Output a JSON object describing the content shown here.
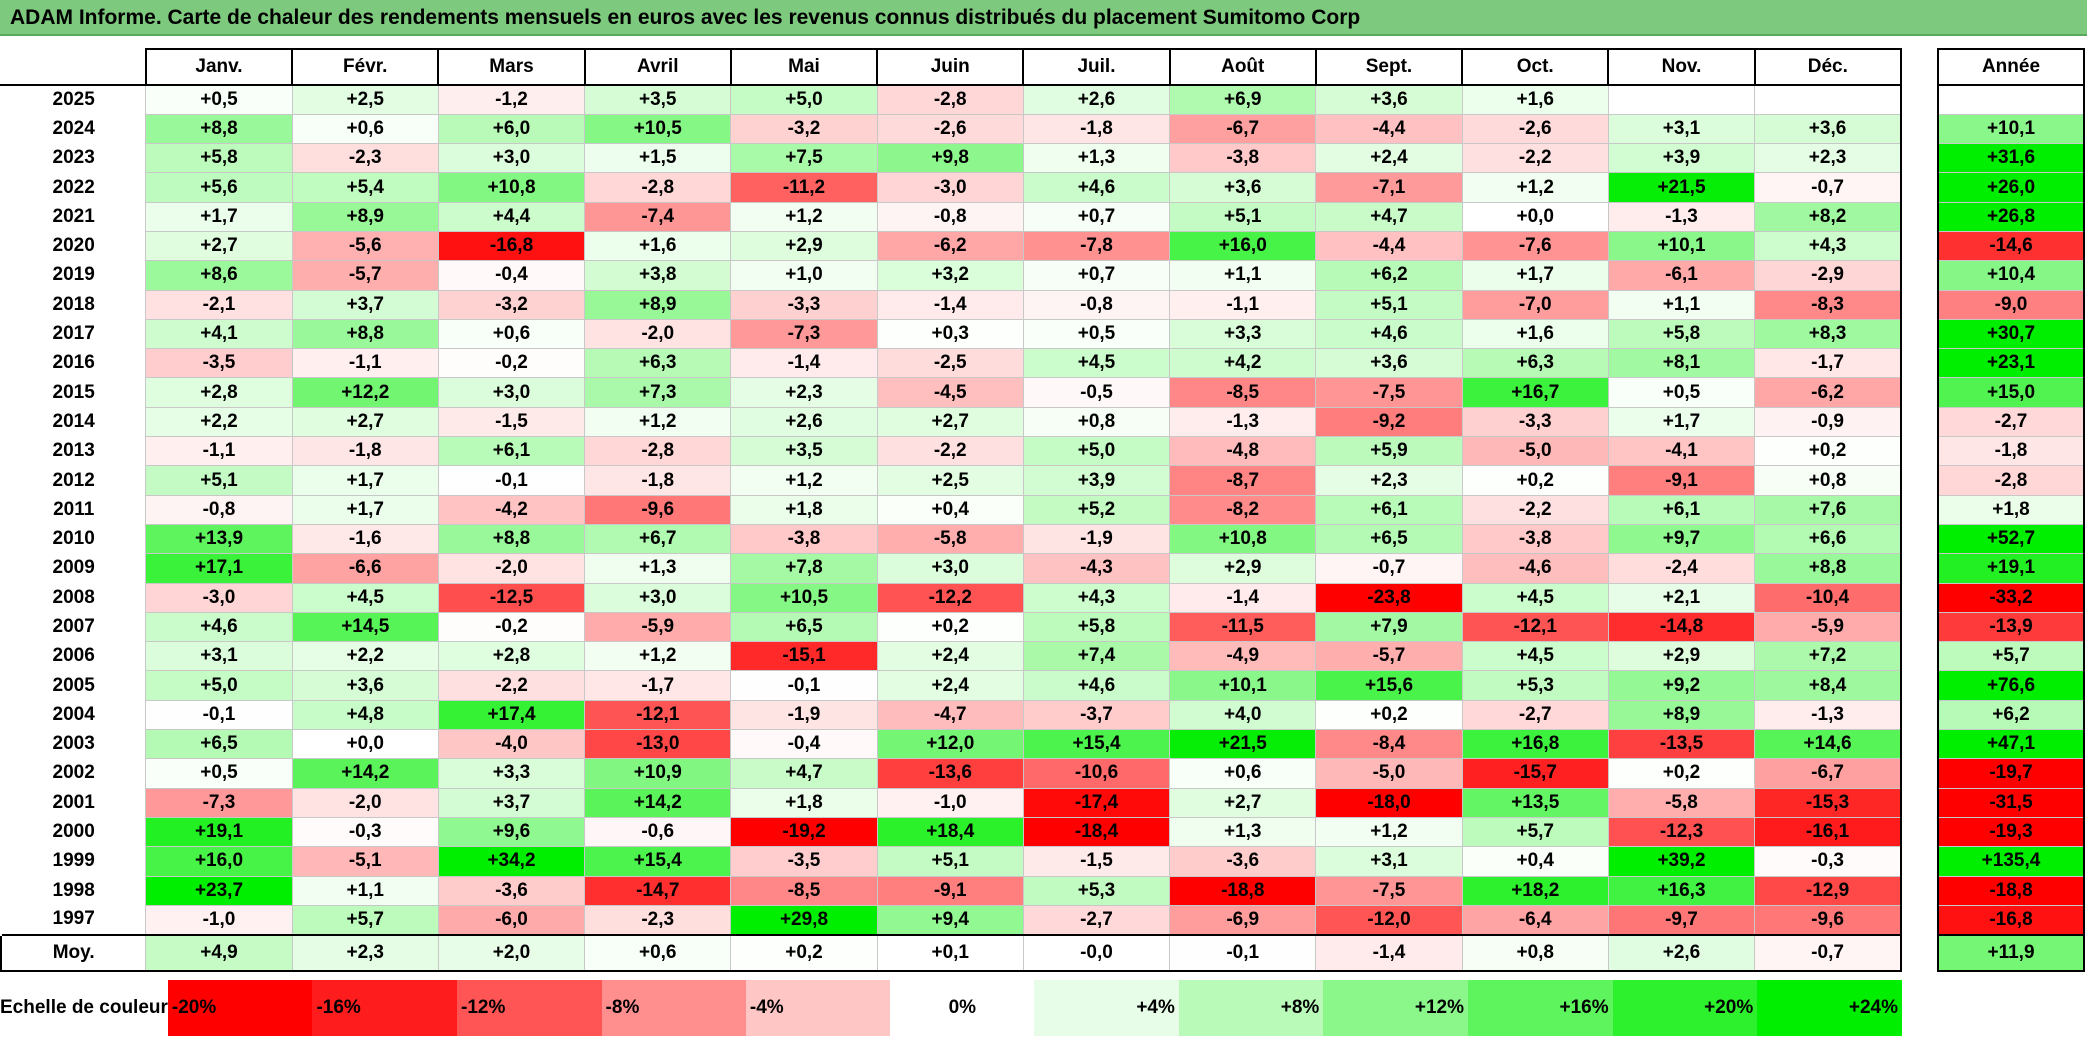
{
  "title": "ADAM Informe. Carte de chaleur des rendements mensuels en euros avec les revenus connus distribués du placement Sumitomo Corp",
  "chart_data": {
    "type": "heatmap",
    "title": "ADAM Informe. Carte de chaleur des rendements mensuels en euros avec les revenus connus distribués du placement Sumitomo Corp",
    "months": [
      "Janv.",
      "Févr.",
      "Mars",
      "Avril",
      "Mai",
      "Juin",
      "Juil.",
      "Août",
      "Sept.",
      "Oct.",
      "Nov.",
      "Déc."
    ],
    "year_header": "Année",
    "rows": [
      {
        "year": "2025",
        "values": [
          "+0,5",
          "+2,5",
          "-1,2",
          "+3,5",
          "+5,0",
          "-2,8",
          "+2,6",
          "+6,9",
          "+3,6",
          "+1,6",
          "",
          ""
        ],
        "annual": ""
      },
      {
        "year": "2024",
        "values": [
          "+8,8",
          "+0,6",
          "+6,0",
          "+10,5",
          "-3,2",
          "-2,6",
          "-1,8",
          "-6,7",
          "-4,4",
          "-2,6",
          "+3,1",
          "+3,6"
        ],
        "annual": "+10,1"
      },
      {
        "year": "2023",
        "values": [
          "+5,8",
          "-2,3",
          "+3,0",
          "+1,5",
          "+7,5",
          "+9,8",
          "+1,3",
          "-3,8",
          "+2,4",
          "-2,2",
          "+3,9",
          "+2,3"
        ],
        "annual": "+31,6"
      },
      {
        "year": "2022",
        "values": [
          "+5,6",
          "+5,4",
          "+10,8",
          "-2,8",
          "-11,2",
          "-3,0",
          "+4,6",
          "+3,6",
          "-7,1",
          "+1,2",
          "+21,5",
          "-0,7"
        ],
        "annual": "+26,0"
      },
      {
        "year": "2021",
        "values": [
          "+1,7",
          "+8,9",
          "+4,4",
          "-7,4",
          "+1,2",
          "-0,8",
          "+0,7",
          "+5,1",
          "+4,7",
          "+0,0",
          "-1,3",
          "+8,2"
        ],
        "annual": "+26,8"
      },
      {
        "year": "2020",
        "values": [
          "+2,7",
          "-5,6",
          "-16,8",
          "+1,6",
          "+2,9",
          "-6,2",
          "-7,8",
          "+16,0",
          "-4,4",
          "-7,6",
          "+10,1",
          "+4,3"
        ],
        "annual": "-14,6"
      },
      {
        "year": "2019",
        "values": [
          "+8,6",
          "-5,7",
          "-0,4",
          "+3,8",
          "+1,0",
          "+3,2",
          "+0,7",
          "+1,1",
          "+6,2",
          "+1,7",
          "-6,1",
          "-2,9"
        ],
        "annual": "+10,4"
      },
      {
        "year": "2018",
        "values": [
          "-2,1",
          "+3,7",
          "-3,2",
          "+8,9",
          "-3,3",
          "-1,4",
          "-0,8",
          "-1,1",
          "+5,1",
          "-7,0",
          "+1,1",
          "-8,3"
        ],
        "annual": "-9,0"
      },
      {
        "year": "2017",
        "values": [
          "+4,1",
          "+8,8",
          "+0,6",
          "-2,0",
          "-7,3",
          "+0,3",
          "+0,5",
          "+3,3",
          "+4,6",
          "+1,6",
          "+5,8",
          "+8,3"
        ],
        "annual": "+30,7"
      },
      {
        "year": "2016",
        "values": [
          "-3,5",
          "-1,1",
          "-0,2",
          "+6,3",
          "-1,4",
          "-2,5",
          "+4,5",
          "+4,2",
          "+3,6",
          "+6,3",
          "+8,1",
          "-1,7"
        ],
        "annual": "+23,1"
      },
      {
        "year": "2015",
        "values": [
          "+2,8",
          "+12,2",
          "+3,0",
          "+7,3",
          "+2,3",
          "-4,5",
          "-0,5",
          "-8,5",
          "-7,5",
          "+16,7",
          "+0,5",
          "-6,2"
        ],
        "annual": "+15,0"
      },
      {
        "year": "2014",
        "values": [
          "+2,2",
          "+2,7",
          "-1,5",
          "+1,2",
          "+2,6",
          "+2,7",
          "+0,8",
          "-1,3",
          "-9,2",
          "-3,3",
          "+1,7",
          "-0,9"
        ],
        "annual": "-2,7"
      },
      {
        "year": "2013",
        "values": [
          "-1,1",
          "-1,8",
          "+6,1",
          "-2,8",
          "+3,5",
          "-2,2",
          "+5,0",
          "-4,8",
          "+5,9",
          "-5,0",
          "-4,1",
          "+0,2"
        ],
        "annual": "-1,8"
      },
      {
        "year": "2012",
        "values": [
          "+5,1",
          "+1,7",
          "-0,1",
          "-1,8",
          "+1,2",
          "+2,5",
          "+3,9",
          "-8,7",
          "+2,3",
          "+0,2",
          "-9,1",
          "+0,8"
        ],
        "annual": "-2,8"
      },
      {
        "year": "2011",
        "values": [
          "-0,8",
          "+1,7",
          "-4,2",
          "-9,6",
          "+1,8",
          "+0,4",
          "+5,2",
          "-8,2",
          "+6,1",
          "-2,2",
          "+6,1",
          "+7,6"
        ],
        "annual": "+1,8"
      },
      {
        "year": "2010",
        "values": [
          "+13,9",
          "-1,6",
          "+8,8",
          "+6,7",
          "-3,8",
          "-5,8",
          "-1,9",
          "+10,8",
          "+6,5",
          "-3,8",
          "+9,7",
          "+6,6"
        ],
        "annual": "+52,7"
      },
      {
        "year": "2009",
        "values": [
          "+17,1",
          "-6,6",
          "-2,0",
          "+1,3",
          "+7,8",
          "+3,0",
          "-4,3",
          "+2,9",
          "-0,7",
          "-4,6",
          "-2,4",
          "+8,8"
        ],
        "annual": "+19,1"
      },
      {
        "year": "2008",
        "values": [
          "-3,0",
          "+4,5",
          "-12,5",
          "+3,0",
          "+10,5",
          "-12,2",
          "+4,3",
          "-1,4",
          "-23,8",
          "+4,5",
          "+2,1",
          "-10,4"
        ],
        "annual": "-33,2"
      },
      {
        "year": "2007",
        "values": [
          "+4,6",
          "+14,5",
          "-0,2",
          "-5,9",
          "+6,5",
          "+0,2",
          "+5,8",
          "-11,5",
          "+7,9",
          "-12,1",
          "-14,8",
          "-5,9"
        ],
        "annual": "-13,9"
      },
      {
        "year": "2006",
        "values": [
          "+3,1",
          "+2,2",
          "+2,8",
          "+1,2",
          "-15,1",
          "+2,4",
          "+7,4",
          "-4,9",
          "-5,7",
          "+4,5",
          "+2,9",
          "+7,2"
        ],
        "annual": "+5,7"
      },
      {
        "year": "2005",
        "values": [
          "+5,0",
          "+3,6",
          "-2,2",
          "-1,7",
          "-0,1",
          "+2,4",
          "+4,6",
          "+10,1",
          "+15,6",
          "+5,3",
          "+9,2",
          "+8,4"
        ],
        "annual": "+76,6"
      },
      {
        "year": "2004",
        "values": [
          "-0,1",
          "+4,8",
          "+17,4",
          "-12,1",
          "-1,9",
          "-4,7",
          "-3,7",
          "+4,0",
          "+0,2",
          "-2,7",
          "+8,9",
          "-1,3"
        ],
        "annual": "+6,2"
      },
      {
        "year": "2003",
        "values": [
          "+6,5",
          "+0,0",
          "-4,0",
          "-13,0",
          "-0,4",
          "+12,0",
          "+15,4",
          "+21,5",
          "-8,4",
          "+16,8",
          "-13,5",
          "+14,6"
        ],
        "annual": "+47,1"
      },
      {
        "year": "2002",
        "values": [
          "+0,5",
          "+14,2",
          "+3,3",
          "+10,9",
          "+4,7",
          "-13,6",
          "-10,6",
          "+0,6",
          "-5,0",
          "-15,7",
          "+0,2",
          "-6,7"
        ],
        "annual": "-19,7"
      },
      {
        "year": "2001",
        "values": [
          "-7,3",
          "-2,0",
          "+3,7",
          "+14,2",
          "+1,8",
          "-1,0",
          "-17,4",
          "+2,7",
          "-18,0",
          "+13,5",
          "-5,8",
          "-15,3"
        ],
        "annual": "-31,5"
      },
      {
        "year": "2000",
        "values": [
          "+19,1",
          "-0,3",
          "+9,6",
          "-0,6",
          "-19,2",
          "+18,4",
          "-18,4",
          "+1,3",
          "+1,2",
          "+5,7",
          "-12,3",
          "-16,1"
        ],
        "annual": "-19,3"
      },
      {
        "year": "1999",
        "values": [
          "+16,0",
          "-5,1",
          "+34,2",
          "+15,4",
          "-3,5",
          "+5,1",
          "-1,5",
          "-3,6",
          "+3,1",
          "+0,4",
          "+39,2",
          "-0,3"
        ],
        "annual": "+135,4"
      },
      {
        "year": "1998",
        "values": [
          "+23,7",
          "+1,1",
          "-3,6",
          "-14,7",
          "-8,5",
          "-9,1",
          "+5,3",
          "-18,8",
          "-7,5",
          "+18,2",
          "+16,3",
          "-12,9"
        ],
        "annual": "-18,8"
      },
      {
        "year": "1997",
        "values": [
          "-1,0",
          "+5,7",
          "-6,0",
          "-2,3",
          "+29,8",
          "+9,4",
          "-2,7",
          "-6,9",
          "-12,0",
          "-6,4",
          "-9,7",
          "-9,6"
        ],
        "annual": "-16,8"
      }
    ],
    "average": {
      "label": "Moy.",
      "values": [
        "+4,9",
        "+2,3",
        "+2,0",
        "+0,6",
        "+0,2",
        "+0,1",
        "-0,0",
        "-0,1",
        "-1,4",
        "+0,8",
        "+2,6",
        "-0,7"
      ],
      "annual": "+11,9"
    },
    "color_scale": {
      "label": "Echelle de couleur",
      "steps": [
        "-20%",
        "-16%",
        "-12%",
        "-8%",
        "-4%",
        "0%",
        "+4%",
        "+8%",
        "+12%",
        "+16%",
        "+20%",
        "+24%"
      ],
      "negative_color": "#ff0000",
      "neutral_color": "#ffffff",
      "positive_color": "#00ee00"
    }
  }
}
